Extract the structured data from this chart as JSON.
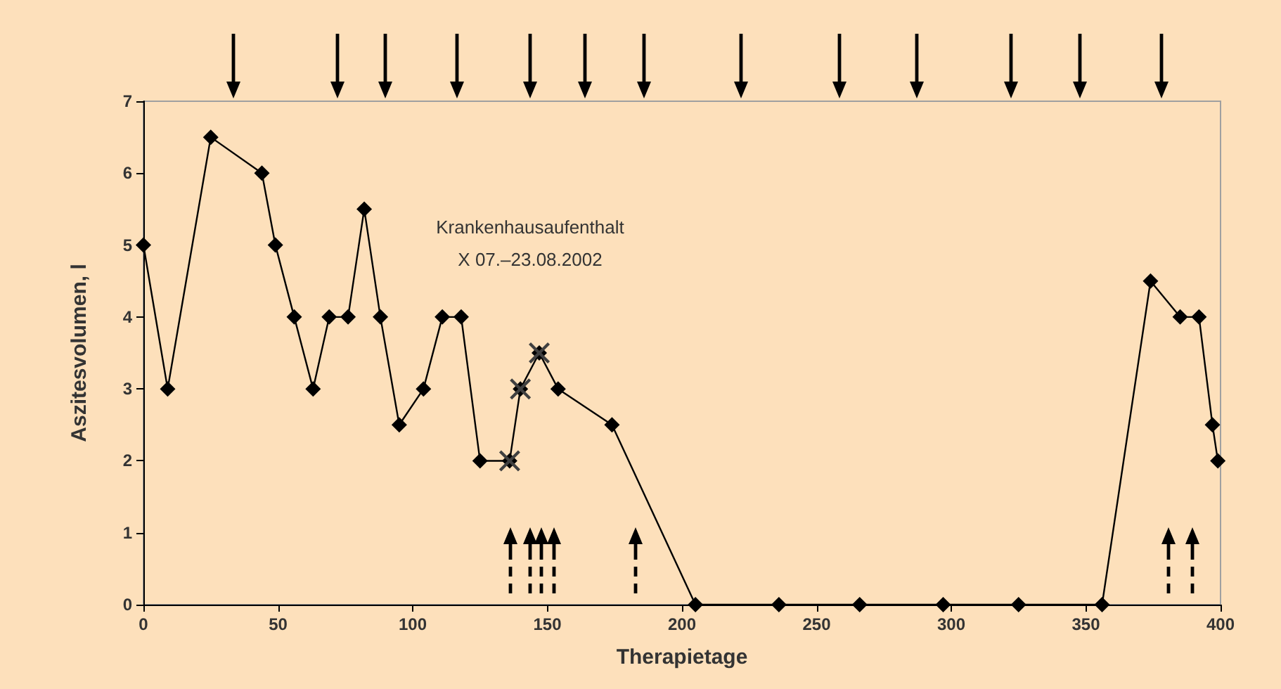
{
  "chart_data": {
    "type": "line",
    "xlabel": "Therapietage",
    "ylabel": "Aszitesvolumen, l",
    "annotations": [
      "Krankenhausaufenthalt\nX 07.–23.08.2002"
    ],
    "xlim": [
      0,
      400
    ],
    "xticks": [
      0,
      50,
      100,
      150,
      200,
      250,
      300,
      350,
      400
    ],
    "ylim": [
      0,
      7
    ],
    "yticks": [
      0,
      1,
      2,
      3,
      4,
      5,
      6,
      7
    ],
    "grid": false,
    "series": [
      {
        "color": "#000000",
        "marker": "diamond",
        "line_style": "solid",
        "x": [
          0,
          9,
          25,
          44,
          49,
          56,
          63,
          69,
          76,
          82,
          88,
          95,
          104,
          111,
          118,
          125,
          136,
          140,
          147,
          154,
          174,
          205,
          236,
          266,
          297,
          325,
          356,
          374,
          385,
          392,
          397,
          399
        ],
        "values": [
          5,
          3,
          6.5,
          6,
          5,
          4,
          3,
          4,
          4,
          5.5,
          4,
          2.5,
          3,
          4,
          4,
          2,
          2,
          3,
          3.5,
          3,
          2.5,
          0,
          0,
          0,
          0,
          0,
          0,
          4.5,
          4,
          4,
          2.5,
          2
        ]
      },
      {
        "type": "scatter",
        "color": "#404040",
        "marker": "cross",
        "x": [
          136,
          140,
          147
        ],
        "values": [
          2,
          3,
          3.5
        ]
      }
    ]
  }
}
